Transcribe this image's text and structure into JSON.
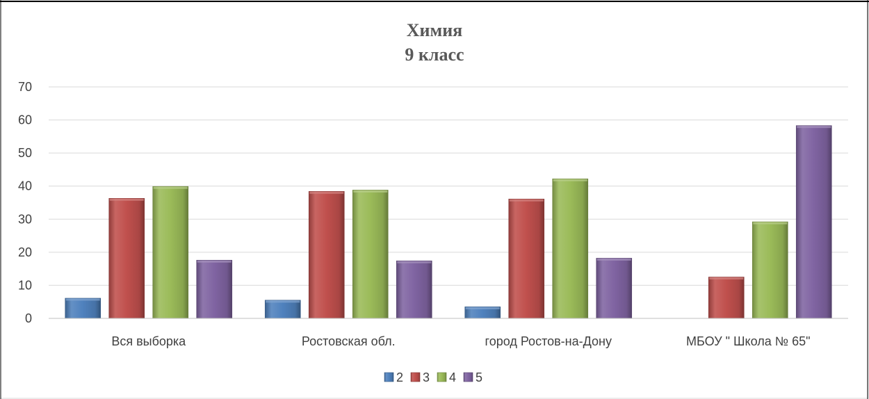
{
  "chart_data": {
    "type": "bar",
    "title": "Химия",
    "subtitle": "9 класс",
    "xlabel": "",
    "ylabel": "",
    "ylim": [
      0,
      70
    ],
    "yticks": [
      0,
      10,
      20,
      30,
      40,
      50,
      60,
      70
    ],
    "grid": true,
    "legend_position": "bottom",
    "categories": [
      "Вся выборка",
      "Ростовская обл.",
      "город Ростов-на-Дону",
      "МБОУ \" Школа № 65\""
    ],
    "series": [
      {
        "name": "2",
        "color": "#4f81bd",
        "values": [
          6.1,
          5.5,
          3.5,
          0
        ]
      },
      {
        "name": "3",
        "color": "#c0504d",
        "values": [
          36.3,
          38.4,
          36.1,
          12.5
        ]
      },
      {
        "name": "4",
        "color": "#9bbb59",
        "values": [
          39.9,
          38.8,
          42.2,
          29.2
        ]
      },
      {
        "name": "5",
        "color": "#8064a2",
        "values": [
          17.6,
          17.4,
          18.2,
          58.3
        ]
      }
    ]
  }
}
